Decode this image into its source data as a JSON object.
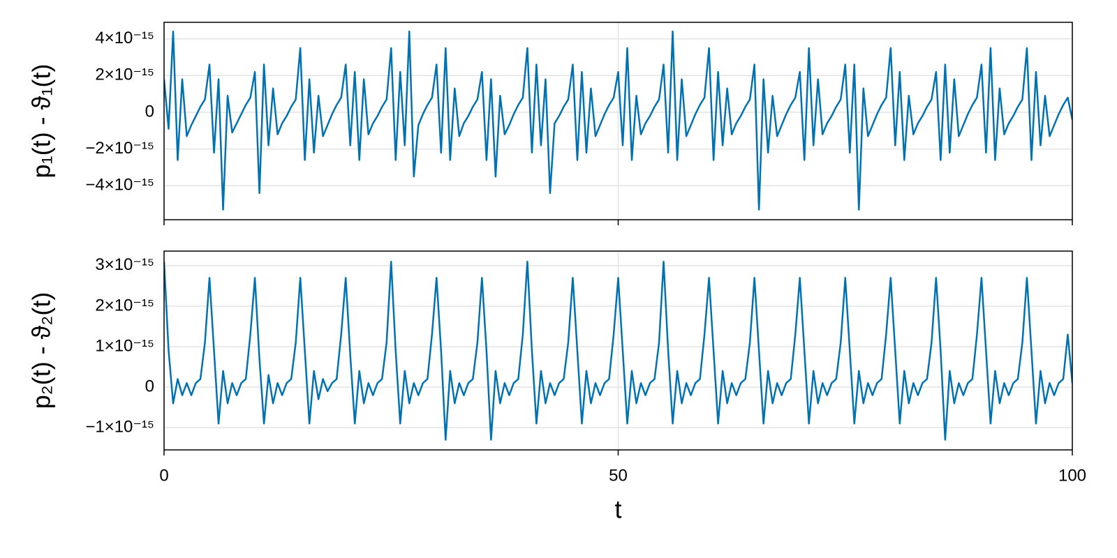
{
  "chart_data": [
    {
      "type": "line",
      "ylabel": "p₁(t) - ϑ₁(t)",
      "color": "#0072b2",
      "grid": true,
      "xtick_labels": false,
      "xlim": [
        0,
        100
      ],
      "xticks": [
        0,
        50,
        100
      ],
      "ylim": [
        -5.85e-15,
        4.9e-15
      ],
      "yticks": [
        {
          "value": -4e-15,
          "label": "−4×10⁻¹⁵"
        },
        {
          "value": -2e-15,
          "label": "−2×10⁻¹⁵"
        },
        0,
        {
          "value": 2e-15,
          "label": "2×10⁻¹⁵"
        },
        {
          "value": 4e-15,
          "label": "4×10⁻¹⁵"
        }
      ],
      "x": [
        0,
        0.5,
        1,
        1.5,
        2,
        2.5,
        3,
        3.5,
        4,
        4.5,
        5,
        5.5,
        6,
        6.5,
        7,
        7.5,
        8,
        8.5,
        9,
        9.5,
        10,
        10.5,
        11,
        11.5,
        12,
        12.5,
        13,
        13.5,
        14,
        14.5,
        15,
        15.5,
        16,
        16.5,
        17,
        17.5,
        18,
        18.5,
        19,
        19.5,
        20,
        20.5,
        21,
        21.5,
        22,
        22.5,
        23,
        23.5,
        24,
        24.5,
        25,
        25.5,
        26,
        26.5,
        27,
        27.5,
        28,
        28.5,
        29,
        29.5,
        30,
        30.5,
        31,
        31.5,
        32,
        32.5,
        33,
        33.5,
        34,
        34.5,
        35,
        35.5,
        36,
        36.5,
        37,
        37.5,
        38,
        38.5,
        39,
        39.5,
        40,
        40.5,
        41,
        41.5,
        42,
        42.5,
        43,
        43.5,
        44,
        44.5,
        45,
        45.5,
        46,
        46.5,
        47,
        47.5,
        48,
        48.5,
        49,
        49.5,
        50,
        50.5,
        51,
        51.5,
        52,
        52.5,
        53,
        53.5,
        54,
        54.5,
        55,
        55.5,
        56,
        56.5,
        57,
        57.5,
        58,
        58.5,
        59,
        59.5,
        60,
        60.5,
        61,
        61.5,
        62,
        62.5,
        63,
        63.5,
        64,
        64.5,
        65,
        65.5,
        66,
        66.5,
        67,
        67.5,
        68,
        68.5,
        69,
        69.5,
        70,
        70.5,
        71,
        71.5,
        72,
        72.5,
        73,
        73.5,
        74,
        74.5,
        75,
        75.5,
        76,
        76.5,
        77,
        77.5,
        78,
        78.5,
        79,
        79.5,
        80,
        80.5,
        81,
        81.5,
        82,
        82.5,
        83,
        83.5,
        84,
        84.5,
        85,
        85.5,
        86,
        86.5,
        87,
        87.5,
        88,
        88.5,
        89,
        89.5,
        90,
        90.5,
        91,
        91.5,
        92,
        92.5,
        93,
        93.5,
        94,
        94.5,
        95,
        95.5,
        96,
        96.5,
        97,
        97.5,
        98,
        98.5,
        99,
        99.5,
        100
      ],
      "values": [
        1.8e-15,
        -9e-16,
        4.4e-15,
        -2.6e-15,
        1.8e-15,
        -1.3e-15,
        -7e-16,
        -2e-16,
        3e-16,
        7e-16,
        2.6e-15,
        -2.2e-15,
        1.8e-15,
        -5.3e-15,
        9e-16,
        -1.1e-15,
        -6e-16,
        -1e-16,
        4e-16,
        8e-16,
        2.2e-15,
        -4.4e-15,
        2.6e-15,
        -1.8e-15,
        1.3e-15,
        -1.2e-15,
        -6e-16,
        -2e-16,
        3e-16,
        7e-16,
        3.5e-15,
        -2.6e-15,
        1.8e-15,
        -2.2e-15,
        9e-16,
        -1.3e-15,
        -7e-16,
        -1e-16,
        4e-16,
        8e-16,
        2.6e-15,
        -1.8e-15,
        2.2e-15,
        -2.6e-15,
        1.8e-15,
        -1.2e-15,
        -6e-16,
        -2e-16,
        3e-16,
        7e-16,
        3.5e-15,
        -2.6e-15,
        2.2e-15,
        -1.8e-15,
        4.4e-15,
        -3.5e-15,
        -7e-16,
        -1e-16,
        4e-16,
        8e-16,
        2.6e-15,
        -2.2e-15,
        3.5e-15,
        -2.6e-15,
        1.3e-15,
        -1.3e-15,
        -6e-16,
        -2e-16,
        3e-16,
        7e-16,
        2.2e-15,
        -2.6e-15,
        1.8e-15,
        -3.5e-15,
        9e-16,
        -1.2e-15,
        -7e-16,
        -1e-16,
        4e-16,
        8e-16,
        3.5e-15,
        -2.2e-15,
        2.6e-15,
        -1.8e-15,
        1.8e-15,
        -4.4e-15,
        -6e-16,
        -2e-16,
        3e-16,
        7e-16,
        2.6e-15,
        -2.6e-15,
        2.2e-15,
        -2.2e-15,
        1.3e-15,
        -1.3e-15,
        -7e-16,
        -1e-16,
        4e-16,
        8e-16,
        2.2e-15,
        -1.8e-15,
        3.5e-15,
        -2.6e-15,
        9e-16,
        -1.2e-15,
        -6e-16,
        -2e-16,
        3e-16,
        7e-16,
        2.6e-15,
        -2.2e-15,
        4.4e-15,
        -2.6e-15,
        1.8e-15,
        -1.3e-15,
        -7e-16,
        -1e-16,
        4e-16,
        8e-16,
        3.5e-15,
        -2.6e-15,
        2.2e-15,
        -1.8e-15,
        1.3e-15,
        -1.2e-15,
        -6e-16,
        -2e-16,
        3e-16,
        7e-16,
        2.6e-15,
        -5.3e-15,
        1.8e-15,
        -2.2e-15,
        9e-16,
        -1.3e-15,
        -7e-16,
        -1e-16,
        4e-16,
        8e-16,
        2.2e-15,
        -2.6e-15,
        3.5e-15,
        -1.8e-15,
        1.8e-15,
        -1.2e-15,
        -6e-16,
        -2e-16,
        3e-16,
        7e-16,
        2.6e-15,
        -2.2e-15,
        2.6e-15,
        -5.3e-15,
        1.3e-15,
        -1.3e-15,
        -7e-16,
        -1e-16,
        4e-16,
        8e-16,
        3.5e-15,
        -1.8e-15,
        2.2e-15,
        -2.6e-15,
        9e-16,
        -1.2e-15,
        -6e-16,
        -2e-16,
        3e-16,
        7e-16,
        2.2e-15,
        -2.6e-15,
        2.6e-15,
        -2.2e-15,
        1.8e-15,
        -1.3e-15,
        -7e-16,
        -1e-16,
        4e-16,
        8e-16,
        2.6e-15,
        -2.2e-15,
        3.5e-15,
        -2.6e-15,
        1.3e-15,
        -1.2e-15,
        -6e-16,
        -2e-16,
        3e-16,
        7e-16,
        3.5e-15,
        -2.6e-15,
        2.2e-15,
        -1.8e-15,
        9e-16,
        -1.3e-15,
        -7e-16,
        -1e-16,
        4e-16,
        8e-16,
        -4e-16
      ]
    },
    {
      "type": "line",
      "ylabel": "p₂(t) - ϑ₂(t)",
      "xlabel": "t",
      "color": "#0072b2",
      "grid": true,
      "xtick_labels": true,
      "xlim": [
        0,
        100
      ],
      "xticks": [
        0,
        50,
        100
      ],
      "ylim": [
        -1.55e-15,
        3.36e-15
      ],
      "yticks": [
        {
          "value": -1e-15,
          "label": "−1×10⁻¹⁵"
        },
        0,
        {
          "value": 1e-15,
          "label": "1×10⁻¹⁵"
        },
        {
          "value": 2e-15,
          "label": "2×10⁻¹⁵"
        },
        {
          "value": 3e-15,
          "label": "3×10⁻¹⁵"
        }
      ],
      "x": [
        0,
        0.5,
        1,
        1.5,
        2,
        2.5,
        3,
        3.5,
        4,
        4.5,
        5,
        5.5,
        6,
        6.5,
        7,
        7.5,
        8,
        8.5,
        9,
        9.5,
        10,
        10.5,
        11,
        11.5,
        12,
        12.5,
        13,
        13.5,
        14,
        14.5,
        15,
        15.5,
        16,
        16.5,
        17,
        17.5,
        18,
        18.5,
        19,
        19.5,
        20,
        20.5,
        21,
        21.5,
        22,
        22.5,
        23,
        23.5,
        24,
        24.5,
        25,
        25.5,
        26,
        26.5,
        27,
        27.5,
        28,
        28.5,
        29,
        29.5,
        30,
        30.5,
        31,
        31.5,
        32,
        32.5,
        33,
        33.5,
        34,
        34.5,
        35,
        35.5,
        36,
        36.5,
        37,
        37.5,
        38,
        38.5,
        39,
        39.5,
        40,
        40.5,
        41,
        41.5,
        42,
        42.5,
        43,
        43.5,
        44,
        44.5,
        45,
        45.5,
        46,
        46.5,
        47,
        47.5,
        48,
        48.5,
        49,
        49.5,
        50,
        50.5,
        51,
        51.5,
        52,
        52.5,
        53,
        53.5,
        54,
        54.5,
        55,
        55.5,
        56,
        56.5,
        57,
        57.5,
        58,
        58.5,
        59,
        59.5,
        60,
        60.5,
        61,
        61.5,
        62,
        62.5,
        63,
        63.5,
        64,
        64.5,
        65,
        65.5,
        66,
        66.5,
        67,
        67.5,
        68,
        68.5,
        69,
        69.5,
        70,
        70.5,
        71,
        71.5,
        72,
        72.5,
        73,
        73.5,
        74,
        74.5,
        75,
        75.5,
        76,
        76.5,
        77,
        77.5,
        78,
        78.5,
        79,
        79.5,
        80,
        80.5,
        81,
        81.5,
        82,
        82.5,
        83,
        83.5,
        84,
        84.5,
        85,
        85.5,
        86,
        86.5,
        87,
        87.5,
        88,
        88.5,
        89,
        89.5,
        90,
        90.5,
        91,
        91.5,
        92,
        92.5,
        93,
        93.5,
        94,
        94.5,
        95,
        95.5,
        96,
        96.5,
        97,
        97.5,
        98,
        98.5,
        99,
        99.5,
        100
      ],
      "values": [
        3.1e-15,
        9e-16,
        -4e-16,
        2e-16,
        -2e-16,
        1e-16,
        -2e-16,
        1e-16,
        2e-16,
        1.1e-15,
        2.7e-15,
        9e-16,
        -9e-16,
        4e-16,
        -4e-16,
        1e-16,
        -2e-16,
        1e-16,
        2e-16,
        1.3e-15,
        2.7e-15,
        7e-16,
        -9e-16,
        3e-16,
        -4e-16,
        1e-16,
        -2e-16,
        1e-16,
        2e-16,
        1.1e-15,
        2.7e-15,
        9e-16,
        -9e-16,
        4e-16,
        -3e-16,
        2e-16,
        -1e-16,
        1e-16,
        2e-16,
        1.3e-15,
        2.7e-15,
        8e-16,
        -9e-16,
        4e-16,
        -4e-16,
        1e-16,
        -2e-16,
        1e-16,
        2e-16,
        1.1e-15,
        3.1e-15,
        9e-16,
        -9e-16,
        4e-16,
        -4e-16,
        1e-16,
        -2e-16,
        1e-16,
        2e-16,
        1.3e-15,
        2.7e-15,
        9e-16,
        -1.3e-15,
        4e-16,
        -4e-16,
        1e-16,
        -2e-16,
        1e-16,
        2e-16,
        1.1e-15,
        2.7e-15,
        9e-16,
        -1.3e-15,
        4e-16,
        -4e-16,
        1e-16,
        -2e-16,
        1e-16,
        2e-16,
        1.3e-15,
        3.1e-15,
        9e-16,
        -9e-16,
        4e-16,
        -4e-16,
        1e-16,
        -2e-16,
        1e-16,
        2e-16,
        1.1e-15,
        2.7e-15,
        9e-16,
        -9e-16,
        4e-16,
        -4e-16,
        1e-16,
        -2e-16,
        1e-16,
        2e-16,
        1.3e-15,
        2.7e-15,
        9e-16,
        -9e-16,
        4e-16,
        -4e-16,
        1e-16,
        -2e-16,
        1e-16,
        2e-16,
        1.1e-15,
        3.1e-15,
        9e-16,
        -9e-16,
        4e-16,
        -4e-16,
        1e-16,
        -2e-16,
        1e-16,
        2e-16,
        1.3e-15,
        2.7e-15,
        9e-16,
        -9e-16,
        4e-16,
        -4e-16,
        1e-16,
        -2e-16,
        1e-16,
        2e-16,
        1.1e-15,
        2.7e-15,
        9e-16,
        -9e-16,
        4e-16,
        -4e-16,
        1e-16,
        -2e-16,
        1e-16,
        2e-16,
        1.3e-15,
        2.7e-15,
        9e-16,
        -9e-16,
        4e-16,
        -4e-16,
        1e-16,
        -2e-16,
        1e-16,
        2e-16,
        1.1e-15,
        2.7e-15,
        9e-16,
        -9e-16,
        4e-16,
        -4e-16,
        1e-16,
        -2e-16,
        1e-16,
        2e-16,
        1.3e-15,
        2.7e-15,
        9e-16,
        -9e-16,
        4e-16,
        -4e-16,
        1e-16,
        -2e-16,
        1e-16,
        2e-16,
        1.1e-15,
        2.7e-15,
        9e-16,
        -1.3e-15,
        4e-16,
        -4e-16,
        1e-16,
        -2e-16,
        1e-16,
        2e-16,
        1.3e-15,
        2.7e-15,
        9e-16,
        -9e-16,
        4e-16,
        -4e-16,
        1e-16,
        -2e-16,
        1e-16,
        2e-16,
        1.1e-15,
        2.7e-15,
        9e-16,
        -9e-16,
        4e-16,
        -4e-16,
        1e-16,
        -2e-16,
        1e-16,
        2e-16,
        1.3e-15,
        1e-16
      ]
    }
  ]
}
